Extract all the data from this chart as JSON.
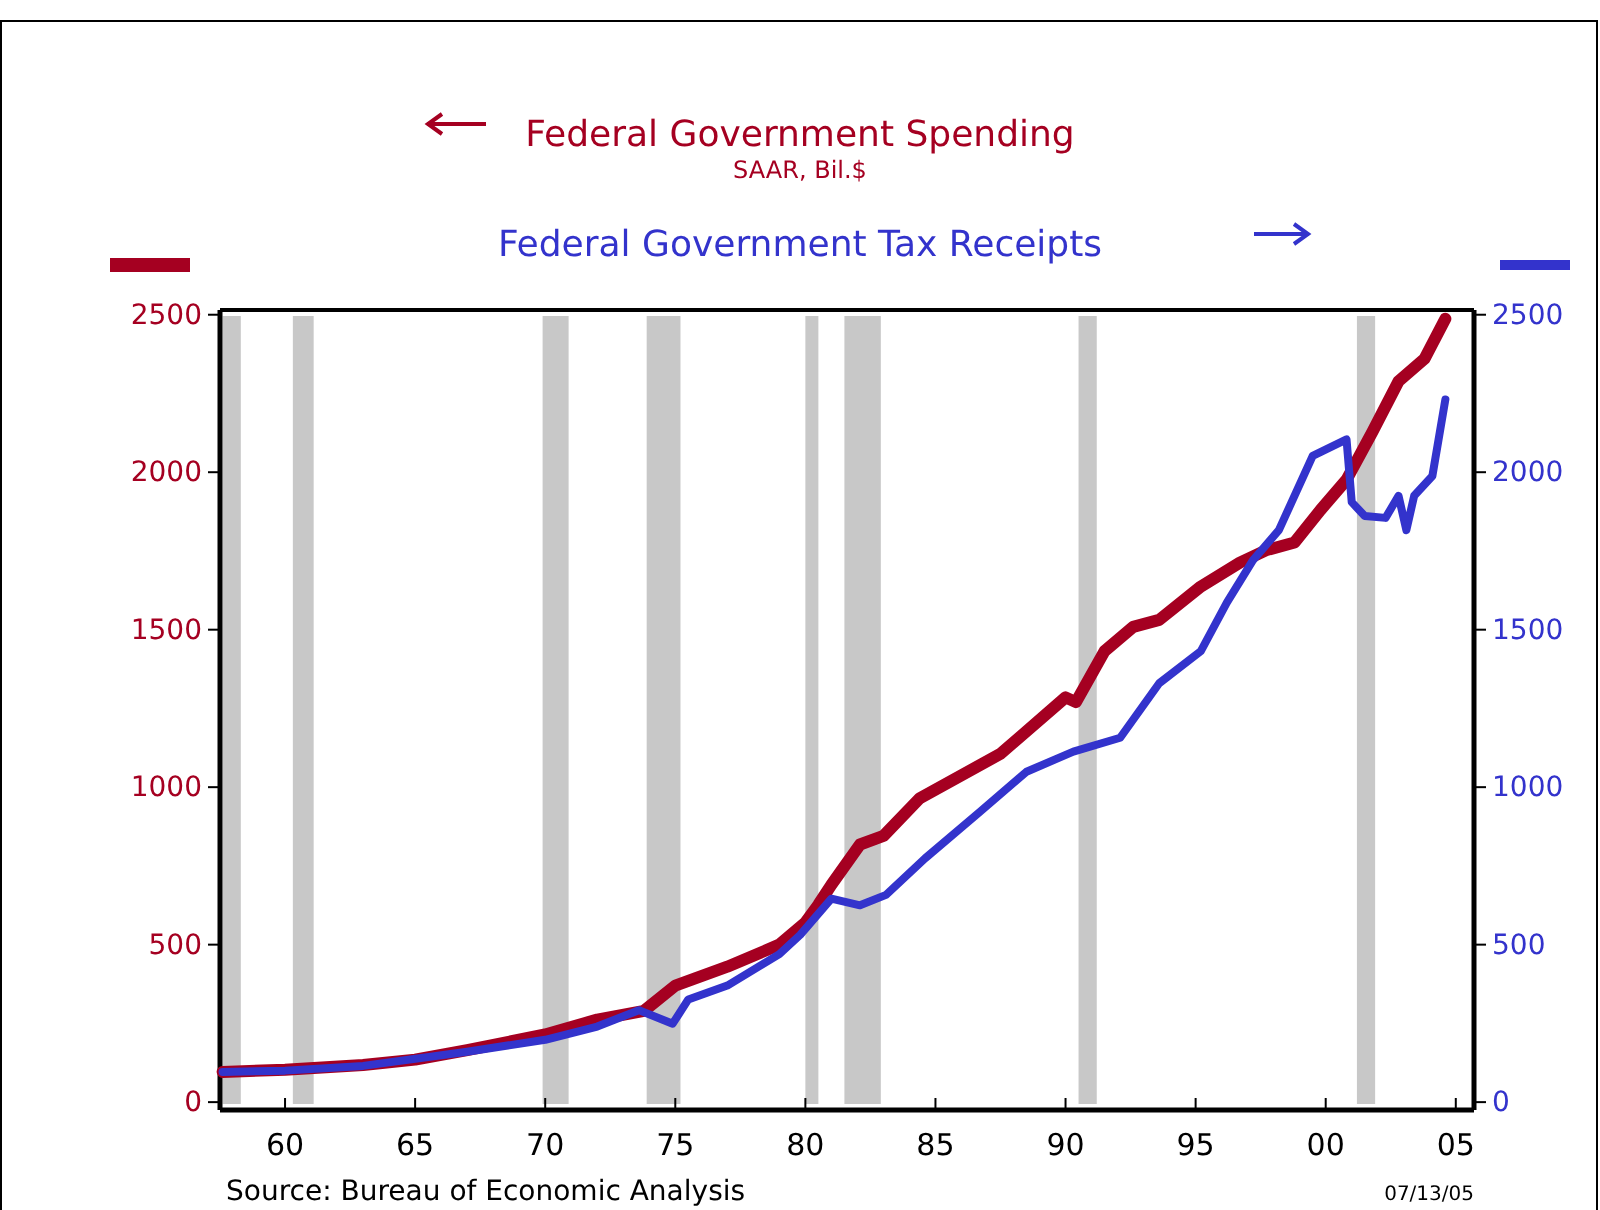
{
  "chart_data": {
    "type": "line",
    "subtitle": "SAAR, Bil.$",
    "xlim": [
      1957.5,
      2005.7
    ],
    "xticks": [
      {
        "value": 1960,
        "label": "60"
      },
      {
        "value": 1965,
        "label": "65"
      },
      {
        "value": 1970,
        "label": "70"
      },
      {
        "value": 1975,
        "label": "75"
      },
      {
        "value": 1980,
        "label": "80"
      },
      {
        "value": 1985,
        "label": "85"
      },
      {
        "value": 1990,
        "label": "90"
      },
      {
        "value": 1995,
        "label": "95"
      },
      {
        "value": 2000,
        "label": "00"
      },
      {
        "value": 2005,
        "label": "05"
      }
    ],
    "ylim": [
      -25,
      2515
    ],
    "yticks": [
      0,
      500,
      1000,
      1500,
      2000,
      2500
    ],
    "y2lim": [
      -25,
      2515
    ],
    "y2ticks": [
      0,
      500,
      1000,
      1500,
      2000,
      2500
    ],
    "legend": "top",
    "grid": false,
    "bands": [
      {
        "axis": "x",
        "from": 1957.6,
        "to": 1958.3,
        "color": "#c8c8c8"
      },
      {
        "axis": "x",
        "from": 1960.3,
        "to": 1961.1,
        "color": "#c8c8c8"
      },
      {
        "axis": "x",
        "from": 1969.9,
        "to": 1970.9,
        "color": "#c8c8c8"
      },
      {
        "axis": "x",
        "from": 1973.9,
        "to": 1975.2,
        "color": "#c8c8c8"
      },
      {
        "axis": "x",
        "from": 1980.0,
        "to": 1980.5,
        "color": "#c8c8c8"
      },
      {
        "axis": "x",
        "from": 1981.5,
        "to": 1982.9,
        "color": "#c8c8c8"
      },
      {
        "axis": "x",
        "from": 1990.5,
        "to": 1991.2,
        "color": "#c8c8c8"
      },
      {
        "axis": "x",
        "from": 2001.2,
        "to": 2001.9,
        "color": "#c8c8c8"
      }
    ],
    "series": [
      {
        "name": "Federal Government Spending",
        "color": "#a50021",
        "x": [
          1957.6,
          1960,
          1963,
          1965,
          1967,
          1970,
          1972,
          1973.8,
          1975,
          1977,
          1979,
          1980,
          1980.5,
          1981,
          1982.1,
          1983,
          1984.4,
          1987.5,
          1990,
          1990.4,
          1991.5,
          1992.6,
          1993.6,
          1995.2,
          1996.7,
          1997.7,
          1998.8,
          1999.8,
          2000.8,
          2001.8,
          2002.8,
          2003.8,
          2004.6
        ],
        "values": [
          96,
          103,
          118,
          135,
          165,
          215,
          262,
          290,
          370,
          430,
          500,
          570,
          627,
          690,
          818,
          845,
          965,
          1106,
          1285,
          1270,
          1432,
          1509,
          1531,
          1637,
          1713,
          1752,
          1777,
          1880,
          1976,
          2129,
          2289,
          2360,
          2487
        ]
      },
      {
        "name": "Federal Government Tax Receipts",
        "color": "#3333cc",
        "axis": "y2",
        "x": [
          1957.6,
          1960,
          1963,
          1967,
          1970,
          1972,
          1973.6,
          1974.9,
          1975.5,
          1977,
          1979,
          1979.8,
          1981,
          1982.1,
          1983.1,
          1984.6,
          1986.7,
          1988.5,
          1990.3,
          1992.1,
          1993.6,
          1995.2,
          1996.2,
          1997.2,
          1998.2,
          1999.5,
          2000.8,
          2001.0,
          2001.5,
          2002.3,
          2002.8,
          2003.1,
          2003.4,
          2004.1,
          2004.6
        ],
        "values": [
          96,
          100,
          115,
          160,
          198,
          240,
          292,
          249,
          326,
          370,
          470,
          531,
          646,
          625,
          658,
          774,
          921,
          1049,
          1113,
          1157,
          1330,
          1432,
          1586,
          1720,
          1816,
          2052,
          2104,
          1905,
          1861,
          1855,
          1925,
          1816,
          1925,
          1988,
          2231
        ]
      }
    ],
    "annotations": [
      "Source:  Bureau of Economic Analysis",
      "07/13/05"
    ]
  }
}
